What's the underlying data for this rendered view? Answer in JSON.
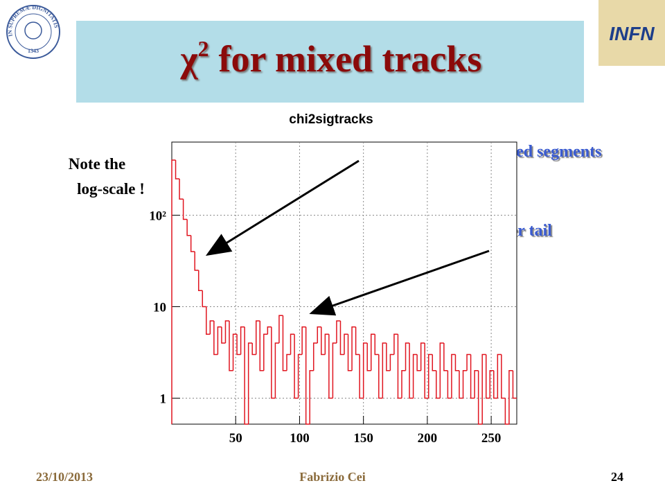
{
  "slide": {
    "title_symbol": "χ",
    "title_sup": "2",
    "title_rest": "for mixed tracks",
    "seal_text": "IN SUPREMÆ DIGNITATIS",
    "seal_year": "1343",
    "logo": "INFN",
    "note_line1": "Note the",
    "note_line2": "log-scale !",
    "annotation_1": "Well reconstructed segments",
    "annotation_2": "Longer tail",
    "footer_date": "23/10/2013",
    "footer_author": "Fabrizio Cei",
    "page_number": "24"
  },
  "chart_data": {
    "type": "histogram",
    "title": "chi2sigtracks",
    "color": "#e0141e",
    "log_y": true,
    "grid": true,
    "bins": [
      0,
      3,
      6,
      9,
      12,
      15,
      18,
      21,
      24,
      27,
      30,
      33,
      36,
      39,
      42,
      45,
      48,
      51,
      54,
      57,
      60,
      63,
      66,
      69,
      72,
      75,
      78,
      81,
      84,
      87,
      90,
      93,
      96,
      99,
      102,
      105,
      108,
      111,
      114,
      117,
      120,
      123,
      126,
      129,
      132,
      135,
      138,
      141,
      144,
      147,
      150,
      153,
      156,
      159,
      162,
      165,
      168,
      171,
      174,
      177,
      180,
      183,
      186,
      189,
      192,
      195,
      198,
      201,
      204,
      207,
      210,
      213,
      216,
      219,
      222,
      225,
      228,
      231,
      234,
      237,
      240,
      243,
      246,
      249,
      252,
      255,
      258,
      261,
      264,
      267,
      270
    ],
    "values": [
      400,
      250,
      150,
      90,
      60,
      40,
      25,
      15,
      10,
      5,
      7,
      3,
      6,
      4,
      7,
      2,
      5,
      3,
      6,
      0,
      4,
      3,
      7,
      2,
      5,
      6,
      1,
      4,
      8,
      2,
      3,
      5,
      1,
      3,
      6,
      0,
      2,
      4,
      6,
      3,
      5,
      1,
      4,
      7,
      3,
      5,
      2,
      6,
      3,
      1,
      4,
      2,
      5,
      3,
      1,
      4,
      2,
      3,
      5,
      1,
      2,
      4,
      1,
      3,
      2,
      4,
      1,
      3,
      2,
      1,
      4,
      2,
      1,
      3,
      2,
      1,
      2,
      3,
      1,
      2,
      0,
      3,
      1,
      2,
      1,
      3,
      1,
      0,
      2,
      1
    ],
    "xlim": [
      0,
      270
    ],
    "ylim": [
      0.52,
      630
    ],
    "xticks": [
      50,
      100,
      150,
      200,
      250
    ],
    "yticks": [
      1,
      10,
      {
        "value": 100,
        "label": "10²"
      }
    ]
  }
}
